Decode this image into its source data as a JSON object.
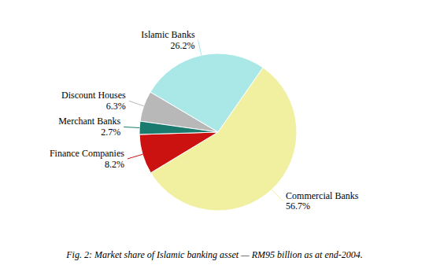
{
  "chart_data": {
    "type": "pie",
    "title": "Fig. 2: Market share of Islamic banking asset — RM95 billion as at end-2004.",
    "categories": [
      "Discount Houses",
      "Islamic Banks",
      "Commercial Banks",
      "Finance Companies",
      "Merchant Banks"
    ],
    "values": [
      6.3,
      26.2,
      56.7,
      8.2,
      2.7
    ],
    "value_labels": [
      "6.3%",
      "26.2%",
      "56.7%",
      "8.2%",
      "2.7%"
    ],
    "colors": [
      "#b8b8b8",
      "#aae8e8",
      "#f0f0a0",
      "#cc1111",
      "#1a7a6e"
    ],
    "data_labels": true
  }
}
